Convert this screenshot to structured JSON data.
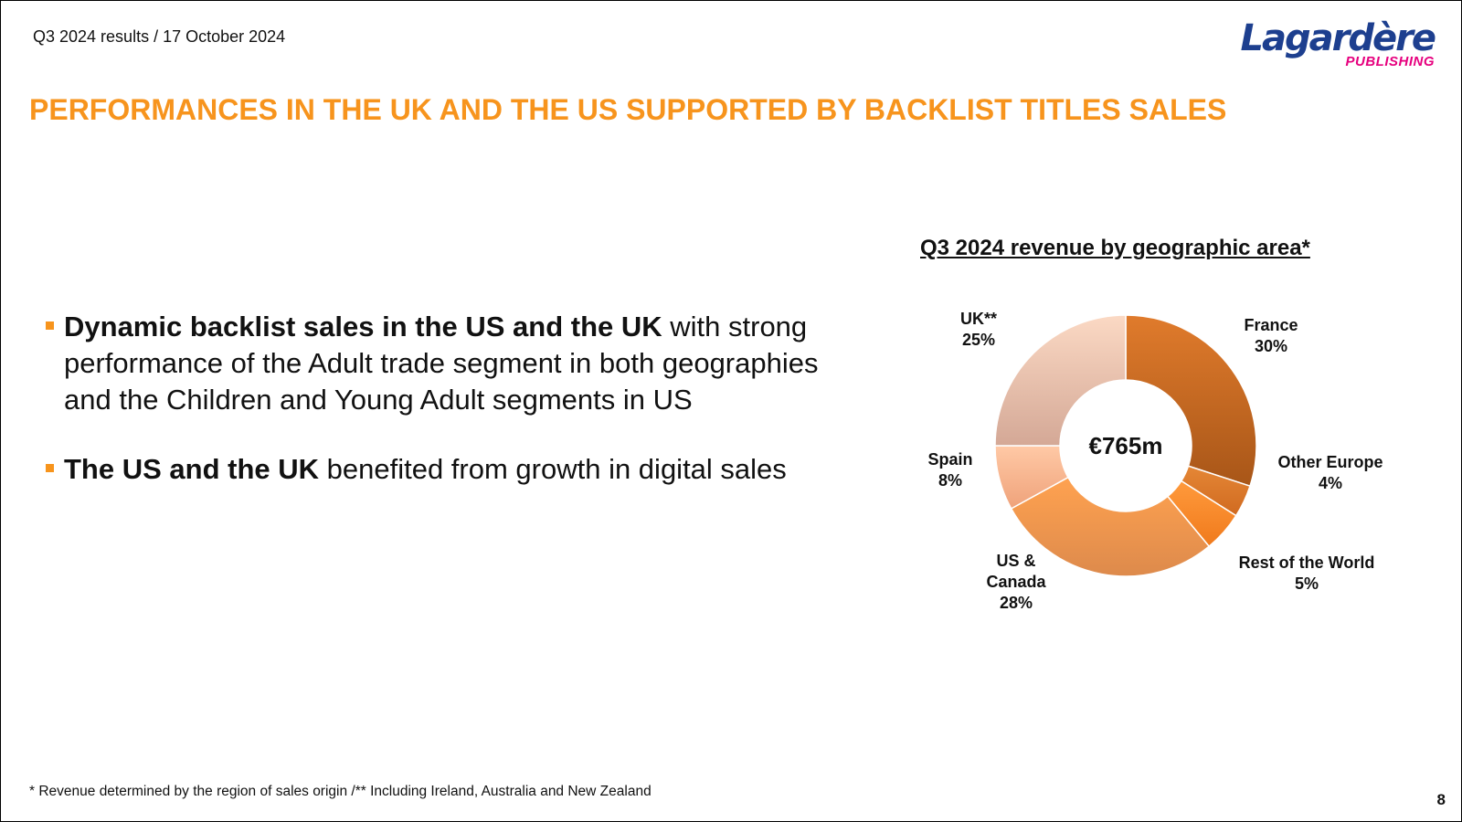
{
  "header": {
    "date_line": "Q3 2024 results / 17 October 2024"
  },
  "logo": {
    "wordmark": "Lagardère",
    "subtitle": "PUBLISHING"
  },
  "title": "PERFORMANCES IN THE UK AND THE US SUPPORTED BY BACKLIST TITLES SALES",
  "bullets": [
    {
      "bold": "Dynamic backlist sales in the US and the UK",
      "text": " with strong performance of the Adult trade segment in both geographies and the Children and Young Adult segments in US"
    },
    {
      "bold": "The US and the UK",
      "text": " benefited from growth in digital sales"
    }
  ],
  "chart_data": {
    "type": "pie",
    "title": "Q3 2024 revenue by geographic area*",
    "center_label": "€765m",
    "categories": [
      "France",
      "Other Europe",
      "Rest of the World",
      "US & Canada",
      "Spain",
      "UK**"
    ],
    "values": [
      30,
      4,
      5,
      28,
      8,
      25
    ],
    "labels": [
      [
        "France",
        "30%"
      ],
      [
        "Other Europe",
        "4%"
      ],
      [
        "Rest of the World",
        "5%"
      ],
      [
        "US &",
        "Canada",
        "28%"
      ],
      [
        "Spain",
        "8%"
      ],
      [
        "UK**",
        "25%"
      ]
    ],
    "colors": [
      [
        "#e07b2c",
        "#a85618"
      ],
      [
        "#e58736",
        "#d06a20"
      ],
      [
        "#ff9a3c",
        "#f07a1c"
      ],
      [
        "#ffa250",
        "#dd8a4c"
      ],
      [
        "#ffc9a6",
        "#efa27a"
      ],
      [
        "#fbd9c4",
        "#d4a896"
      ]
    ]
  },
  "footnote": "* Revenue determined by the region of sales origin /** Including Ireland, Australia and New Zealand",
  "page_number": "8"
}
